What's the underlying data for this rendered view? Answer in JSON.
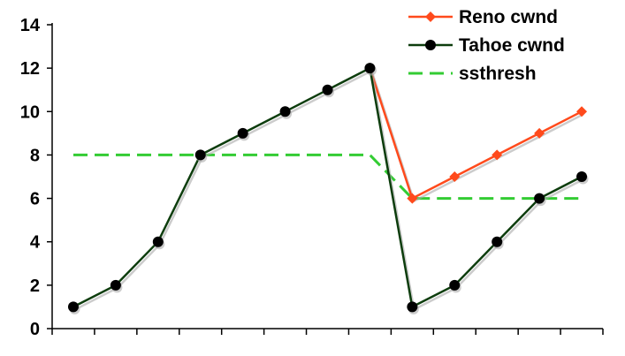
{
  "chart_data": {
    "type": "line",
    "x": [
      1,
      2,
      3,
      4,
      5,
      6,
      7,
      8,
      9,
      10,
      11,
      12,
      13
    ],
    "ylim": [
      0,
      14
    ],
    "yticks": [
      0,
      2,
      4,
      6,
      8,
      10,
      12,
      14
    ],
    "grid": false,
    "legend_position": "top-right",
    "series": [
      {
        "name": "Reno cwnd",
        "color": "#ff4a1c",
        "marker": "diamond",
        "line": "solid",
        "x": [
          8,
          9,
          10,
          11,
          12,
          13
        ],
        "values": [
          12,
          6,
          7,
          8,
          9,
          10
        ]
      },
      {
        "name": "Tahoe cwnd",
        "color": "#0d3d0d",
        "marker": "circle",
        "line": "solid",
        "x": [
          1,
          2,
          3,
          4,
          5,
          6,
          7,
          8,
          9,
          10,
          11,
          12,
          13
        ],
        "values": [
          1,
          2,
          4,
          8,
          9,
          10,
          11,
          12,
          1,
          2,
          4,
          6,
          7
        ]
      },
      {
        "name": "ssthresh",
        "color": "#33cc33",
        "marker": "none",
        "line": "dashed",
        "x": [
          1,
          8,
          9,
          13
        ],
        "values": [
          8,
          8,
          6,
          6
        ]
      }
    ]
  }
}
